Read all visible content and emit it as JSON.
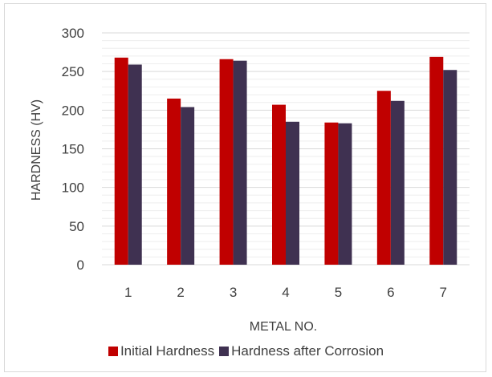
{
  "chart_data": {
    "type": "bar",
    "categories": [
      "1",
      "2",
      "3",
      "4",
      "5",
      "6",
      "7"
    ],
    "series": [
      {
        "name": "Initial Hardness",
        "values": [
          268,
          215,
          266,
          207,
          184,
          225,
          269
        ],
        "color": "#c00000"
      },
      {
        "name": "Hardness after Corrosion",
        "values": [
          259,
          204,
          264,
          185,
          183,
          212,
          252
        ],
        "color": "#3f3151"
      }
    ],
    "xlabel": "METAL NO.",
    "ylabel": "HARDNESS (HV)",
    "ylim": [
      0,
      300
    ],
    "yticks": [
      0,
      50,
      100,
      150,
      200,
      250,
      300
    ],
    "grid": true,
    "legend_position": "bottom"
  }
}
